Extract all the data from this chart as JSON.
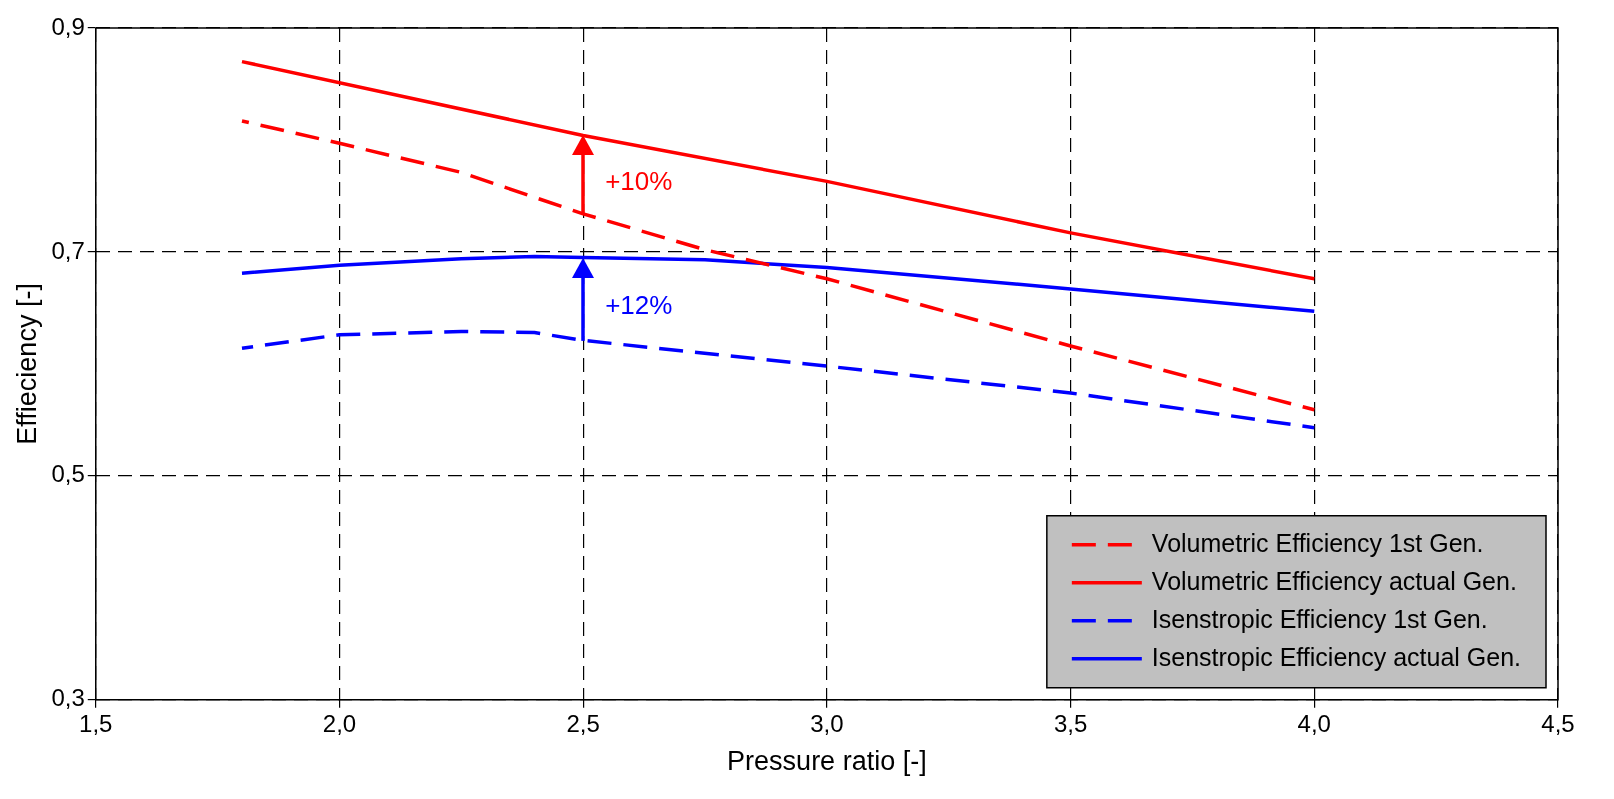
{
  "chart_data": {
    "type": "line",
    "xlabel": "Pressure ratio [-]",
    "ylabel": "Effieciency [-]",
    "xlim": [
      1.5,
      4.5
    ],
    "xticks": [
      {
        "value": 1.5,
        "label": "1,5"
      },
      {
        "value": 2.0,
        "label": "2,0"
      },
      {
        "value": 2.5,
        "label": "2,5"
      },
      {
        "value": 3.0,
        "label": "3,0"
      },
      {
        "value": 3.5,
        "label": "3,5"
      },
      {
        "value": 4.0,
        "label": "4,0"
      },
      {
        "value": 4.5,
        "label": "4,5"
      }
    ],
    "ylim": [
      0.3,
      0.9
    ],
    "yticks": [
      {
        "value": 0.3,
        "label": "0,3"
      },
      {
        "value": 0.5,
        "label": "0,5"
      },
      {
        "value": 0.7,
        "label": "0,7"
      },
      {
        "value": 0.9,
        "label": "0,9"
      }
    ],
    "grid": true,
    "legend": "bottom right",
    "series": [
      {
        "name": "Volumetric Efficiency 1st Gen.",
        "color": "#ff0000",
        "line_style": "dashed",
        "x": [
          1.8,
          2.0,
          2.25,
          2.5,
          2.75,
          3.0,
          3.5,
          4.0
        ],
        "values": [
          0.817,
          0.797,
          0.771,
          0.734,
          0.702,
          0.676,
          0.616,
          0.559
        ]
      },
      {
        "name": "Volumetric Efficiency actual Gen.",
        "color": "#ff0000",
        "line_style": "solid",
        "x": [
          1.8,
          2.5,
          3.0,
          3.5,
          4.0
        ],
        "values": [
          0.87,
          0.804,
          0.763,
          0.717,
          0.676
        ]
      },
      {
        "name": "Isenstropic Efficiency 1st Gen.",
        "color": "#0000ff",
        "line_style": "dashed",
        "x": [
          1.8,
          2.0,
          2.25,
          2.4,
          2.5,
          3.0,
          3.5,
          4.0
        ],
        "values": [
          0.614,
          0.626,
          0.629,
          0.628,
          0.621,
          0.598,
          0.574,
          0.543
        ]
      },
      {
        "name": "Isenstropic Efficiency actual Gen.",
        "color": "#0000ff",
        "line_style": "solid",
        "x": [
          1.8,
          2.0,
          2.25,
          2.4,
          2.5,
          2.75,
          3.0,
          3.5,
          4.0
        ],
        "values": [
          0.681,
          0.688,
          0.694,
          0.696,
          0.695,
          0.693,
          0.686,
          0.667,
          0.647
        ]
      }
    ],
    "annotations": [
      "+10%",
      "+12%"
    ]
  }
}
